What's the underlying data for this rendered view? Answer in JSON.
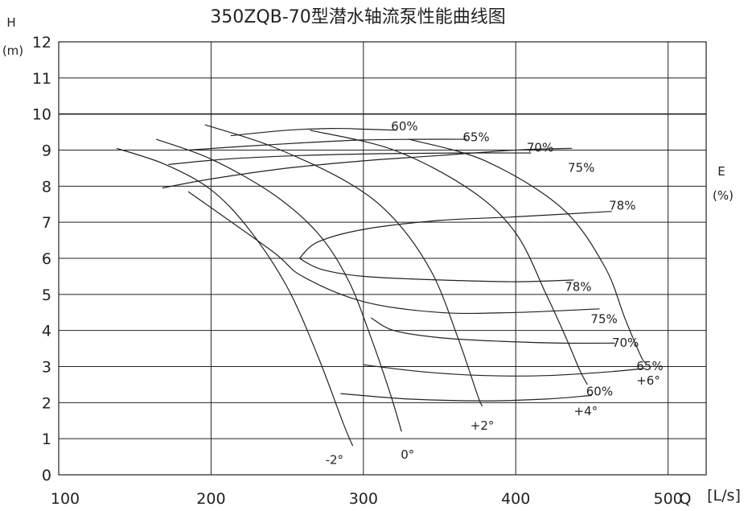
{
  "chart_data": {
    "type": "line",
    "title": "350ZQB-70型潜水轴流泵性能曲线图",
    "ylabel_top": "H",
    "ylabel_unit": "(m)",
    "xlabel_prefix": "Q",
    "xlabel_unit": "[L/s]",
    "elabel_top": "E",
    "elabel_unit": "(%)",
    "xlim": [
      100,
      525
    ],
    "ylim": [
      0,
      12
    ],
    "x_ticks": [
      100,
      200,
      300,
      400,
      500
    ],
    "x_tick_labels": [
      "100",
      "200",
      "300",
      "400",
      "500"
    ],
    "y_ticks": [
      0,
      1,
      2,
      3,
      4,
      5,
      6,
      7,
      8,
      9,
      10,
      11,
      12
    ],
    "y_tick_labels": [
      "0",
      "1",
      "2",
      "3",
      "4",
      "5",
      "6",
      "7",
      "8",
      "9",
      "10",
      "11",
      "12"
    ],
    "grid": true,
    "blade_angle_curves": [
      {
        "label": "-2°",
        "label_at": [
          281,
          0.3
        ],
        "points": [
          [
            138,
            9.05
          ],
          [
            170,
            8.6
          ],
          [
            200,
            7.9
          ],
          [
            225,
            6.8
          ],
          [
            250,
            5.2
          ],
          [
            270,
            3.3
          ],
          [
            287,
            1.4
          ],
          [
            293,
            0.8
          ]
        ]
      },
      {
        "label": "0°",
        "label_at": [
          329,
          0.45
        ],
        "points": [
          [
            164,
            9.3
          ],
          [
            200,
            8.75
          ],
          [
            240,
            7.8
          ],
          [
            270,
            6.7
          ],
          [
            290,
            5.4
          ],
          [
            305,
            3.8
          ],
          [
            318,
            2.2
          ],
          [
            325,
            1.2
          ]
        ]
      },
      {
        "label": "+2°",
        "label_at": [
          378,
          1.25
        ],
        "points": [
          [
            196,
            9.7
          ],
          [
            240,
            9.1
          ],
          [
            290,
            8.1
          ],
          [
            320,
            7.1
          ],
          [
            345,
            5.6
          ],
          [
            362,
            3.8
          ],
          [
            375,
            2.2
          ],
          [
            378,
            1.9
          ]
        ]
      },
      {
        "label": "+4°",
        "label_at": [
          446,
          1.65
        ],
        "points": [
          [
            265,
            9.55
          ],
          [
            320,
            9.0
          ],
          [
            370,
            7.9
          ],
          [
            400,
            6.7
          ],
          [
            420,
            5.0
          ],
          [
            433,
            3.8
          ],
          [
            442,
            2.9
          ],
          [
            447,
            2.5
          ]
        ]
      },
      {
        "label": "+6°",
        "label_at": [
          487,
          2.5
        ],
        "points": [
          [
            330,
            9.3
          ],
          [
            380,
            8.7
          ],
          [
            430,
            7.4
          ],
          [
            458,
            5.8
          ],
          [
            472,
            4.3
          ],
          [
            482,
            3.3
          ],
          [
            485,
            3.1
          ]
        ]
      }
    ],
    "efficiency_curves": [
      {
        "label": "60%",
        "label_at": [
          327,
          9.55
        ],
        "points": [
          [
            213,
            9.4
          ],
          [
            250,
            9.55
          ],
          [
            280,
            9.6
          ],
          [
            300,
            9.58
          ],
          [
            322,
            9.55
          ]
        ]
      },
      {
        "label": "65%",
        "label_at": [
          374,
          9.25
        ],
        "points": [
          [
            185,
            9.0
          ],
          [
            220,
            9.1
          ],
          [
            260,
            9.2
          ],
          [
            300,
            9.28
          ],
          [
            340,
            9.3
          ],
          [
            368,
            9.3
          ]
        ]
      },
      {
        "label": "70%",
        "label_at": [
          416,
          8.95
        ],
        "points": [
          [
            172,
            8.6
          ],
          [
            210,
            8.75
          ],
          [
            260,
            8.85
          ],
          [
            310,
            8.9
          ],
          [
            360,
            8.92
          ],
          [
            410,
            8.92
          ]
        ]
      },
      {
        "label": "75%",
        "label_at": [
          443,
          8.4
        ],
        "points": [
          [
            168,
            7.95
          ],
          [
            200,
            8.2
          ],
          [
            250,
            8.5
          ],
          [
            300,
            8.7
          ],
          [
            350,
            8.85
          ],
          [
            400,
            9.0
          ],
          [
            437,
            9.05
          ]
        ]
      },
      {
        "label": "78%",
        "label_at": [
          470,
          7.35
        ],
        "points": [
          [
            258,
            6.0
          ],
          [
            270,
            6.45
          ],
          [
            300,
            6.8
          ],
          [
            350,
            7.05
          ],
          [
            400,
            7.15
          ],
          [
            463,
            7.3
          ]
        ]
      },
      {
        "label": "60%",
        "label_at": [
          455,
          2.2
        ],
        "points": [
          [
            285,
            2.25
          ],
          [
            330,
            2.1
          ],
          [
            380,
            2.05
          ],
          [
            420,
            2.1
          ],
          [
            450,
            2.2
          ]
        ]
      },
      {
        "label": "65%",
        "label_at": [
          488,
          2.9
        ],
        "points": [
          [
            300,
            3.05
          ],
          [
            340,
            2.85
          ],
          [
            380,
            2.75
          ],
          [
            420,
            2.75
          ],
          [
            460,
            2.85
          ],
          [
            485,
            2.95
          ]
        ]
      },
      {
        "label": "70%",
        "label_at": [
          472,
          3.55
        ],
        "points": [
          [
            305,
            4.35
          ],
          [
            320,
            4.0
          ],
          [
            350,
            3.8
          ],
          [
            390,
            3.7
          ],
          [
            430,
            3.65
          ],
          [
            465,
            3.65
          ]
        ]
      },
      {
        "label": "75%",
        "label_at": [
          458,
          4.2
        ],
        "points": [
          [
            185,
            7.85
          ],
          [
            240,
            6.2
          ],
          [
            260,
            5.5
          ],
          [
            300,
            4.8
          ],
          [
            350,
            4.5
          ],
          [
            400,
            4.5
          ],
          [
            455,
            4.6
          ]
        ]
      },
      {
        "label": "78%",
        "label_at": [
          441,
          5.1
        ],
        "points": [
          [
            258,
            6.0
          ],
          [
            272,
            5.7
          ],
          [
            300,
            5.5
          ],
          [
            350,
            5.4
          ],
          [
            400,
            5.35
          ],
          [
            438,
            5.4
          ]
        ]
      }
    ]
  }
}
